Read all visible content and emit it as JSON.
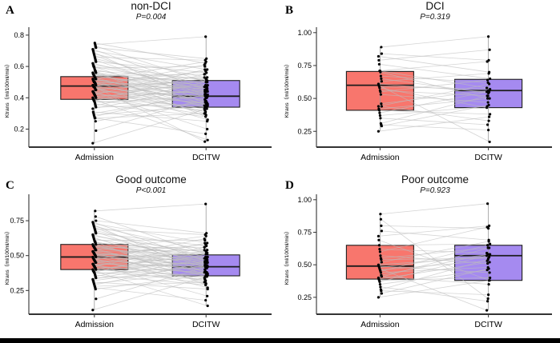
{
  "figure": {
    "background": "#ffffff",
    "bottom_bar_color": "#000000",
    "colors": {
      "admission_box": "#F8766D",
      "dcitw_box": "#A58AF0",
      "box_border": "#1c1c1c",
      "median_line": "#1c1c1c",
      "pair_line": "#bdbdbd",
      "stem": "#999999",
      "point": "#000000",
      "axis": "#333333"
    }
  },
  "chart_data": [
    {
      "type": "paired-boxplot",
      "panel_letter": "A",
      "title": "non-DCI",
      "p_label": "P=0.004",
      "ylabel": "Ktrans（ml/100ml/min）",
      "categories": [
        "Admission",
        "DCITW"
      ],
      "ylim": [
        0.085,
        0.82
      ],
      "yticks": [
        0.2,
        0.4,
        0.6,
        0.8
      ],
      "ytick_labels": [
        "0.2",
        "0.4",
        "0.6",
        "0.8"
      ],
      "boxes": [
        {
          "category": "Admission",
          "q1": 0.39,
          "median": 0.475,
          "q3": 0.535
        },
        {
          "category": "DCITW",
          "q1": 0.34,
          "median": 0.41,
          "q3": 0.51
        }
      ],
      "pairs": [
        [
          0.11,
          0.33
        ],
        [
          0.19,
          0.4
        ],
        [
          0.25,
          0.38
        ],
        [
          0.27,
          0.17
        ],
        [
          0.27,
          0.3
        ],
        [
          0.28,
          0.44
        ],
        [
          0.29,
          0.35
        ],
        [
          0.3,
          0.42
        ],
        [
          0.31,
          0.25
        ],
        [
          0.33,
          0.47
        ],
        [
          0.34,
          0.36
        ],
        [
          0.35,
          0.5
        ],
        [
          0.36,
          0.28
        ],
        [
          0.37,
          0.41
        ],
        [
          0.38,
          0.32
        ],
        [
          0.38,
          0.55
        ],
        [
          0.39,
          0.13
        ],
        [
          0.39,
          0.45
        ],
        [
          0.4,
          0.34
        ],
        [
          0.4,
          0.51
        ],
        [
          0.41,
          0.29
        ],
        [
          0.41,
          0.44
        ],
        [
          0.42,
          0.37
        ],
        [
          0.42,
          0.58
        ],
        [
          0.43,
          0.33
        ],
        [
          0.43,
          0.48
        ],
        [
          0.44,
          0.2
        ],
        [
          0.44,
          0.41
        ],
        [
          0.45,
          0.36
        ],
        [
          0.45,
          0.52
        ],
        [
          0.46,
          0.31
        ],
        [
          0.46,
          0.43
        ],
        [
          0.47,
          0.39
        ],
        [
          0.47,
          0.61
        ],
        [
          0.47,
          0.26
        ],
        [
          0.48,
          0.46
        ],
        [
          0.48,
          0.35
        ],
        [
          0.48,
          0.5
        ],
        [
          0.49,
          0.42
        ],
        [
          0.49,
          0.57
        ],
        [
          0.5,
          0.38
        ],
        [
          0.5,
          0.47
        ],
        [
          0.5,
          0.3
        ],
        [
          0.51,
          0.44
        ],
        [
          0.51,
          0.53
        ],
        [
          0.52,
          0.4
        ],
        [
          0.52,
          0.36
        ],
        [
          0.52,
          0.63
        ],
        [
          0.53,
          0.48
        ],
        [
          0.53,
          0.34
        ],
        [
          0.54,
          0.45
        ],
        [
          0.54,
          0.55
        ],
        [
          0.55,
          0.41
        ],
        [
          0.55,
          0.5
        ],
        [
          0.56,
          0.37
        ],
        [
          0.56,
          0.46
        ],
        [
          0.57,
          0.52
        ],
        [
          0.57,
          0.28
        ],
        [
          0.58,
          0.43
        ],
        [
          0.59,
          0.6
        ],
        [
          0.6,
          0.47
        ],
        [
          0.6,
          0.35
        ],
        [
          0.61,
          0.51
        ],
        [
          0.62,
          0.44
        ],
        [
          0.63,
          0.56
        ],
        [
          0.64,
          0.4
        ],
        [
          0.65,
          0.48
        ],
        [
          0.66,
          0.64
        ],
        [
          0.67,
          0.42
        ],
        [
          0.68,
          0.53
        ],
        [
          0.69,
          0.36
        ],
        [
          0.7,
          0.58
        ],
        [
          0.71,
          0.45
        ],
        [
          0.72,
          0.65
        ],
        [
          0.73,
          0.5
        ],
        [
          0.74,
          0.79
        ],
        [
          0.75,
          0.62
        ],
        [
          0.47,
          0.12
        ]
      ]
    },
    {
      "type": "paired-boxplot",
      "panel_letter": "B",
      "title": "DCI",
      "p_label": "P=0.319",
      "ylabel": "Ktrans（ml/100ml/min）",
      "categories": [
        "Admission",
        "DCITW"
      ],
      "ylim": [
        0.13,
        1.005
      ],
      "yticks": [
        0.25,
        0.5,
        0.75,
        1.0
      ],
      "ytick_labels": [
        "0.25",
        "0.50",
        "0.75",
        "1.00"
      ],
      "boxes": [
        {
          "category": "Admission",
          "q1": 0.41,
          "median": 0.6,
          "q3": 0.705
        },
        {
          "category": "DCITW",
          "q1": 0.43,
          "median": 0.56,
          "q3": 0.645
        }
      ],
      "pairs": [
        [
          0.25,
          0.36
        ],
        [
          0.29,
          0.45
        ],
        [
          0.3,
          0.26
        ],
        [
          0.31,
          0.52
        ],
        [
          0.35,
          0.3
        ],
        [
          0.37,
          0.44
        ],
        [
          0.39,
          0.55
        ],
        [
          0.41,
          0.38
        ],
        [
          0.42,
          0.5
        ],
        [
          0.44,
          0.61
        ],
        [
          0.44,
          0.33
        ],
        [
          0.46,
          0.56
        ],
        [
          0.53,
          0.47
        ],
        [
          0.55,
          0.64
        ],
        [
          0.56,
          0.52
        ],
        [
          0.58,
          0.43
        ],
        [
          0.59,
          0.57
        ],
        [
          0.6,
          0.17
        ],
        [
          0.61,
          0.55
        ],
        [
          0.63,
          0.69
        ],
        [
          0.65,
          0.54
        ],
        [
          0.67,
          0.62
        ],
        [
          0.7,
          0.5
        ],
        [
          0.71,
          0.78
        ],
        [
          0.71,
          0.58
        ],
        [
          0.76,
          0.65
        ],
        [
          0.79,
          0.87
        ],
        [
          0.82,
          0.7
        ],
        [
          0.84,
          0.79
        ],
        [
          0.89,
          0.97
        ]
      ]
    },
    {
      "type": "paired-boxplot",
      "panel_letter": "C",
      "title": "Good outcome",
      "p_label": "P<0.001",
      "ylabel": "Ktrans（ml/100ml/min）",
      "categories": [
        "Admission",
        "DCITW"
      ],
      "ylim": [
        0.08,
        0.905
      ],
      "yticks": [
        0.25,
        0.5,
        0.75
      ],
      "ytick_labels": [
        "0.25",
        "0.50",
        "0.75"
      ],
      "boxes": [
        {
          "category": "Admission",
          "q1": 0.4,
          "median": 0.49,
          "q3": 0.58
        },
        {
          "category": "DCITW",
          "q1": 0.355,
          "median": 0.42,
          "q3": 0.505
        }
      ],
      "pairs": [
        [
          0.11,
          0.35
        ],
        [
          0.19,
          0.42
        ],
        [
          0.26,
          0.36
        ],
        [
          0.27,
          0.18
        ],
        [
          0.28,
          0.31
        ],
        [
          0.29,
          0.45
        ],
        [
          0.3,
          0.38
        ],
        [
          0.31,
          0.26
        ],
        [
          0.32,
          0.43
        ],
        [
          0.33,
          0.48
        ],
        [
          0.34,
          0.37
        ],
        [
          0.35,
          0.51
        ],
        [
          0.36,
          0.29
        ],
        [
          0.37,
          0.42
        ],
        [
          0.38,
          0.33
        ],
        [
          0.38,
          0.56
        ],
        [
          0.39,
          0.14
        ],
        [
          0.39,
          0.46
        ],
        [
          0.4,
          0.35
        ],
        [
          0.4,
          0.52
        ],
        [
          0.41,
          0.3
        ],
        [
          0.41,
          0.45
        ],
        [
          0.42,
          0.38
        ],
        [
          0.42,
          0.59
        ],
        [
          0.43,
          0.34
        ],
        [
          0.43,
          0.49
        ],
        [
          0.44,
          0.21
        ],
        [
          0.44,
          0.42
        ],
        [
          0.45,
          0.37
        ],
        [
          0.45,
          0.53
        ],
        [
          0.46,
          0.32
        ],
        [
          0.46,
          0.44
        ],
        [
          0.47,
          0.4
        ],
        [
          0.47,
          0.62
        ],
        [
          0.48,
          0.27
        ],
        [
          0.48,
          0.47
        ],
        [
          0.49,
          0.36
        ],
        [
          0.49,
          0.51
        ],
        [
          0.5,
          0.43
        ],
        [
          0.5,
          0.58
        ],
        [
          0.51,
          0.39
        ],
        [
          0.51,
          0.48
        ],
        [
          0.52,
          0.31
        ],
        [
          0.52,
          0.45
        ],
        [
          0.53,
          0.54
        ],
        [
          0.53,
          0.41
        ],
        [
          0.54,
          0.37
        ],
        [
          0.54,
          0.64
        ],
        [
          0.55,
          0.49
        ],
        [
          0.55,
          0.35
        ],
        [
          0.56,
          0.46
        ],
        [
          0.56,
          0.56
        ],
        [
          0.57,
          0.42
        ],
        [
          0.57,
          0.51
        ],
        [
          0.58,
          0.38
        ],
        [
          0.58,
          0.47
        ],
        [
          0.59,
          0.53
        ],
        [
          0.6,
          0.29
        ],
        [
          0.6,
          0.44
        ],
        [
          0.61,
          0.61
        ],
        [
          0.62,
          0.48
        ],
        [
          0.63,
          0.36
        ],
        [
          0.64,
          0.52
        ],
        [
          0.65,
          0.45
        ],
        [
          0.66,
          0.57
        ],
        [
          0.67,
          0.41
        ],
        [
          0.68,
          0.49
        ],
        [
          0.69,
          0.65
        ],
        [
          0.7,
          0.43
        ],
        [
          0.71,
          0.54
        ],
        [
          0.72,
          0.37
        ],
        [
          0.73,
          0.59
        ],
        [
          0.74,
          0.46
        ],
        [
          0.75,
          0.66
        ],
        [
          0.78,
          0.51
        ],
        [
          0.82,
          0.87
        ]
      ]
    },
    {
      "type": "paired-boxplot",
      "panel_letter": "D",
      "title": "Poor outcome",
      "p_label": "P=0.923",
      "ylabel": "Ktrans（ml/100ml/min）",
      "categories": [
        "Admission",
        "DCITW"
      ],
      "ylim": [
        0.12,
        1.005
      ],
      "yticks": [
        0.25,
        0.5,
        0.75,
        1.0
      ],
      "ytick_labels": [
        "0.25",
        "0.50",
        "0.75",
        "1.00"
      ],
      "boxes": [
        {
          "category": "Admission",
          "q1": 0.39,
          "median": 0.49,
          "q3": 0.65
        },
        {
          "category": "DCITW",
          "q1": 0.38,
          "median": 0.57,
          "q3": 0.65
        }
      ],
      "pairs": [
        [
          0.25,
          0.38
        ],
        [
          0.28,
          0.47
        ],
        [
          0.3,
          0.27
        ],
        [
          0.31,
          0.54
        ],
        [
          0.33,
          0.22
        ],
        [
          0.35,
          0.46
        ],
        [
          0.37,
          0.57
        ],
        [
          0.38,
          0.4
        ],
        [
          0.39,
          0.52
        ],
        [
          0.4,
          0.63
        ],
        [
          0.41,
          0.35
        ],
        [
          0.42,
          0.58
        ],
        [
          0.44,
          0.48
        ],
        [
          0.45,
          0.65
        ],
        [
          0.46,
          0.53
        ],
        [
          0.47,
          0.15
        ],
        [
          0.48,
          0.58
        ],
        [
          0.49,
          0.44
        ],
        [
          0.5,
          0.56
        ],
        [
          0.52,
          0.68
        ],
        [
          0.54,
          0.55
        ],
        [
          0.55,
          0.63
        ],
        [
          0.57,
          0.51
        ],
        [
          0.6,
          0.79
        ],
        [
          0.62,
          0.59
        ],
        [
          0.65,
          0.66
        ],
        [
          0.69,
          0.38
        ],
        [
          0.72,
          0.8
        ],
        [
          0.76,
          0.69
        ],
        [
          0.8,
          0.78
        ],
        [
          0.85,
          0.24
        ],
        [
          0.89,
          0.97
        ]
      ]
    }
  ]
}
